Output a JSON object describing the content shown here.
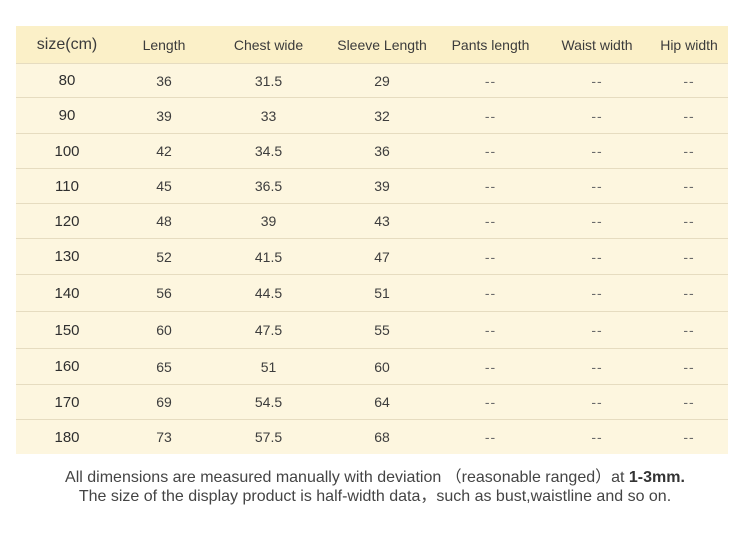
{
  "table": {
    "headers": [
      "size(cm)",
      "Length",
      "Chest wide",
      "Sleeve Length",
      "Pants length",
      "Waist width",
      "Hip width"
    ],
    "rows": [
      [
        "80",
        "36",
        "31.5",
        "29",
        "--",
        "--",
        "--"
      ],
      [
        "90",
        "39",
        "33",
        "32",
        "--",
        "--",
        "--"
      ],
      [
        "100",
        "42",
        "34.5",
        "36",
        "--",
        "--",
        "--"
      ],
      [
        "110",
        "45",
        "36.5",
        "39",
        "--",
        "--",
        "--"
      ],
      [
        "120",
        "48",
        "39",
        "43",
        "--",
        "--",
        "--"
      ],
      [
        "130",
        "52",
        "41.5",
        "47",
        "--",
        "--",
        "--"
      ],
      [
        "140",
        "56",
        "44.5",
        "51",
        "--",
        "--",
        "--"
      ],
      [
        "150",
        "60",
        "47.5",
        "55",
        "--",
        "--",
        "--"
      ],
      [
        "160",
        "65",
        "51",
        "60",
        "--",
        "--",
        "--"
      ],
      [
        "170",
        "69",
        "54.5",
        "64",
        "--",
        "--",
        "--"
      ],
      [
        "180",
        "73",
        "57.5",
        "68",
        "--",
        "--",
        "--"
      ]
    ]
  },
  "notes": {
    "line1_prefix": "All dimensions are measured manually with deviation （reasonable ranged）at ",
    "line1_bold": "1-3mm.",
    "line2": "The size of the display product is half-width data，such as bust,waistline and so on."
  }
}
